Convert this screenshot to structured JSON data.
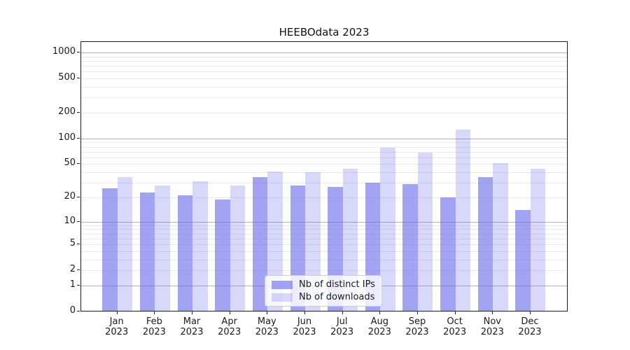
{
  "title": "HEEBOdata 2023",
  "chart_data": {
    "type": "bar",
    "title": "HEEBOdata 2023",
    "months": [
      "Jan",
      "Feb",
      "Mar",
      "Apr",
      "May",
      "Jun",
      "Jul",
      "Aug",
      "Sep",
      "Oct",
      "Nov",
      "Dec"
    ],
    "year": "2023",
    "categories": [
      "Jan 2023",
      "Feb 2023",
      "Mar 2023",
      "Apr 2023",
      "May 2023",
      "Jun 2023",
      "Jul 2023",
      "Aug 2023",
      "Sep 2023",
      "Oct 2023",
      "Nov 2023",
      "Dec 2023"
    ],
    "series": [
      {
        "name": "Nb of distinct IPs",
        "color": "rgba(106,106,238,0.62)",
        "values": [
          26,
          23,
          21,
          19,
          35,
          28,
          27,
          30,
          29,
          20,
          35,
          14
        ]
      },
      {
        "name": "Nb of downloads",
        "color": "rgba(106,106,238,0.26)",
        "values": [
          35,
          28,
          31,
          28,
          41,
          40,
          44,
          78,
          68,
          127,
          51,
          44
        ]
      }
    ],
    "y_axis": {
      "scale": "log10(1+x)",
      "tick_values": [
        0,
        1,
        2,
        5,
        10,
        20,
        50,
        100,
        200,
        500,
        1000
      ],
      "major_grid_values": [
        1,
        10,
        100,
        1000
      ],
      "minor_grid_values": [
        2,
        3,
        4,
        5,
        6,
        7,
        8,
        9,
        20,
        30,
        40,
        50,
        60,
        70,
        80,
        90,
        200,
        300,
        400,
        500,
        600,
        700,
        800,
        900
      ],
      "range_top": 1300
    },
    "xlabel": "",
    "ylabel": "",
    "grid": "on",
    "legend_position": "bottom-center"
  },
  "colors": {
    "major_grid": "#b0b0b0",
    "minor_grid": "#e8e8e8",
    "spine": "#1c1c1c",
    "text": "#1a1a1a",
    "legend_bg": "rgba(255,255,255,0.8)",
    "legend_border": "#cccccc"
  }
}
